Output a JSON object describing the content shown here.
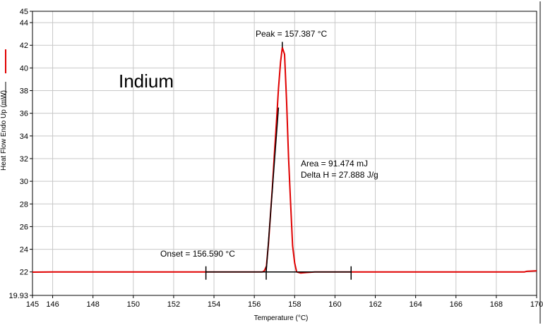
{
  "chart_data": {
    "type": "line",
    "title": "Indium",
    "xlabel": "Temperature (°C)",
    "ylabel": "Heat Flow Endo Up (mW)",
    "xlim": [
      145,
      170
    ],
    "ylim": [
      19.93,
      45
    ],
    "grid": true,
    "x_ticks": [
      "145",
      "146",
      "148",
      "150",
      "152",
      "154",
      "156",
      "158",
      "160",
      "162",
      "164",
      "166",
      "168",
      "170"
    ],
    "y_ticks": [
      "19.93",
      "22",
      "24",
      "26",
      "28",
      "30",
      "32",
      "34",
      "36",
      "38",
      "40",
      "42",
      "44",
      "45"
    ],
    "colors": {
      "curve": "#e00000",
      "baseline": "#000000",
      "grid": "#c8c8c8"
    },
    "series": [
      {
        "color": "#e00000",
        "points": [
          [
            145,
            21.98
          ],
          [
            146,
            22.0
          ],
          [
            150,
            22.0
          ],
          [
            154,
            22.0
          ],
          [
            156,
            22.0
          ],
          [
            156.4,
            22.0
          ],
          [
            156.5,
            22.1
          ],
          [
            156.6,
            22.5
          ],
          [
            156.7,
            24.5
          ],
          [
            156.8,
            27.0
          ],
          [
            156.9,
            29.6
          ],
          [
            157.0,
            32.5
          ],
          [
            157.1,
            35.3
          ],
          [
            157.2,
            38.2
          ],
          [
            157.3,
            40.5
          ],
          [
            157.387,
            41.8
          ],
          [
            157.5,
            41.2
          ],
          [
            157.6,
            37.0
          ],
          [
            157.7,
            32.0
          ],
          [
            157.8,
            28.0
          ],
          [
            157.9,
            24.3
          ],
          [
            158.0,
            22.8
          ],
          [
            158.1,
            22.0
          ],
          [
            158.3,
            21.9
          ],
          [
            158.6,
            21.95
          ],
          [
            159,
            22.0
          ],
          [
            162,
            22.0
          ],
          [
            166,
            22.0
          ],
          [
            169.4,
            22.0
          ],
          [
            169.5,
            22.05
          ],
          [
            170,
            22.1
          ]
        ]
      },
      {
        "color": "#000000",
        "points": [
          [
            156.59,
            22.0
          ],
          [
            157.2,
            36.5
          ]
        ]
      },
      {
        "color": "#000000",
        "points": [
          [
            153.6,
            22.0
          ],
          [
            160.8,
            22.0
          ]
        ]
      }
    ],
    "vertical_markers": [
      153.6,
      156.59,
      160.8
    ],
    "peak_marker": {
      "x": 157.387,
      "y_from": 42.3,
      "y_to": 41.8
    },
    "annotations": {
      "peak": "Peak = 157.387 °C",
      "area": "Area = 91.474 mJ",
      "delta_h": "Delta H = 27.888 J/g",
      "onset": "Onset = 156.590 °C"
    }
  }
}
